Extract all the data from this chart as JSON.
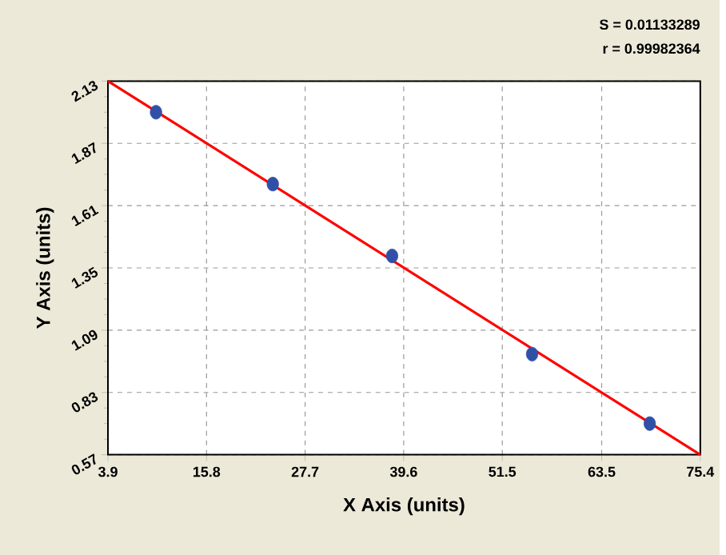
{
  "chart_data": {
    "type": "scatter",
    "xlabel": "X Axis (units)",
    "ylabel": "Y Axis (units)",
    "annotations": [
      "S = 0.01133289",
      "r = 0.99982364"
    ],
    "xlim": [
      3.9,
      75.4
    ],
    "ylim": [
      0.57,
      2.13
    ],
    "xticks": [
      3.9,
      15.8,
      27.7,
      39.6,
      51.5,
      63.5,
      75.4
    ],
    "yticks": [
      0.57,
      0.83,
      1.09,
      1.35,
      1.61,
      1.87,
      2.13
    ],
    "grid": true,
    "series": [
      {
        "type": "line",
        "color": "#ff0000",
        "line_style": "solid",
        "marker": "none",
        "x": [
          3.9,
          75.4
        ],
        "values": [
          2.13,
          0.57
        ]
      },
      {
        "marker": "circle",
        "color": "#3050a8",
        "x": [
          9.7,
          23.8,
          38.2,
          55.1,
          69.3
        ],
        "values": [
          2.0,
          1.7,
          1.4,
          0.99,
          0.7
        ]
      }
    ]
  }
}
